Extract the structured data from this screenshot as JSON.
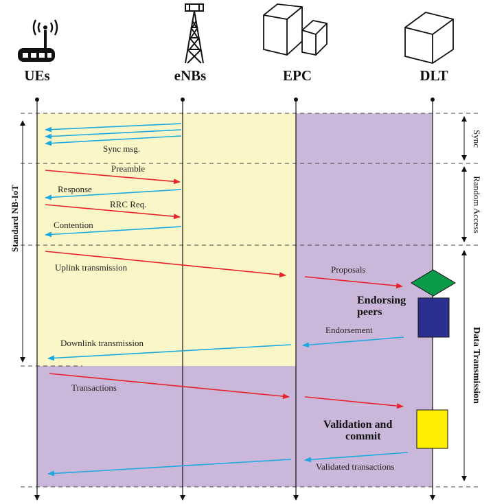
{
  "entities": [
    {
      "id": "ues",
      "label": "UEs",
      "icon": "router-icon"
    },
    {
      "id": "enbs",
      "label": "eNBs",
      "icon": "cell-tower-icon"
    },
    {
      "id": "epc",
      "label": "EPC",
      "icon": "cubes-icon"
    },
    {
      "id": "dlt",
      "label": "DLT",
      "icon": "cube-icon"
    }
  ],
  "phases": {
    "sync": "Sync",
    "random_access": "Random Access",
    "data_transmission": "Data Transmission",
    "standard_nbiot": "Standard NB-IoT"
  },
  "messages": {
    "sync_msg": "Sync msg.",
    "preamble": "Preamble",
    "response": "Response",
    "rrc_req": "RRC Req.",
    "contention": "Contention",
    "uplink": "Uplink transmission",
    "proposals": "Proposals",
    "endorsement": "Endorsement",
    "downlink": "Downlink transmission",
    "transactions": "Transactions",
    "validated": "Validated transactions"
  },
  "blocks": {
    "endorsing_line1": "Endorsing",
    "endorsing_line2": "peers",
    "validation_line1": "Validation and",
    "validation_line2": "commit"
  },
  "colors": {
    "region_yellow": "#faf6c8",
    "region_purple": "#cbb7d9",
    "arrow_red": "#e8222a",
    "arrow_blue": "#1aa9e0",
    "diamond_green": "#0a9a4a",
    "peers_blue": "#2b2f8f",
    "commit_yellow": "#ffee00"
  }
}
